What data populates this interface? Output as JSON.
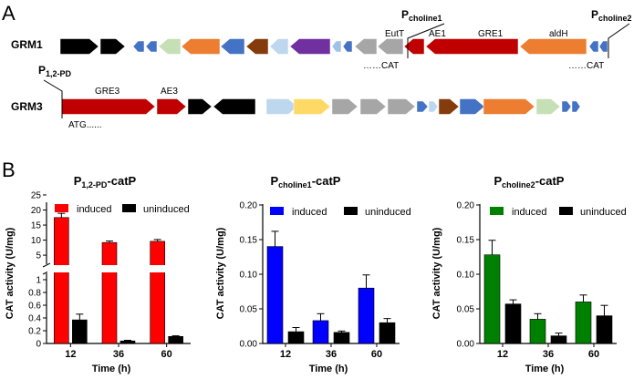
{
  "panel_a": {
    "label": "A",
    "grm1": {
      "name": "GRM1",
      "promoter1": {
        "main": "P",
        "sub": "choline1"
      },
      "promoter2": {
        "main": "P",
        "sub": "choline2"
      },
      "gene_labels": [
        "EutT",
        "AE1",
        "GRE1",
        "aldH"
      ],
      "seq1": "……CAT",
      "seq2": "……CAT",
      "arrows": [
        {
          "color": "#000000",
          "dir": "right",
          "size": "large"
        },
        {
          "color": "#000000",
          "dir": "right",
          "size": "large"
        },
        {
          "color": "#4472c4",
          "dir": "left",
          "size": "small"
        },
        {
          "color": "#4472c4",
          "dir": "left",
          "size": "small"
        },
        {
          "color": "#c5e0b4",
          "dir": "left",
          "size": "large"
        },
        {
          "color": "#ed7d31",
          "dir": "left",
          "size": "large"
        },
        {
          "color": "#4472c4",
          "dir": "left",
          "size": "large"
        },
        {
          "color": "#843c0c",
          "dir": "left",
          "size": "large"
        },
        {
          "color": "#bdd7ee",
          "dir": "left",
          "size": "large"
        },
        {
          "color": "#7030a0",
          "dir": "left",
          "size": "large"
        },
        {
          "color": "#9dc3e6",
          "dir": "left",
          "size": "small"
        },
        {
          "color": "#4472c4",
          "dir": "left",
          "size": "small"
        },
        {
          "color": "#a6a6a6",
          "dir": "left",
          "size": "large"
        },
        {
          "color": "#a6a6a6",
          "dir": "left",
          "size": "large"
        },
        {
          "color": "#c00000",
          "dir": "left",
          "size": "large"
        },
        {
          "color": "#c00000",
          "dir": "left",
          "size": "large"
        },
        {
          "color": "#ed7d31",
          "dir": "left",
          "size": "large"
        },
        {
          "color": "#4472c4",
          "dir": "left",
          "size": "small"
        },
        {
          "color": "#4472c4",
          "dir": "left",
          "size": "small"
        }
      ]
    },
    "grm3": {
      "name": "GRM3",
      "promoter": {
        "main": "P",
        "sub": "1,2-PD"
      },
      "gene_labels": [
        "GRE3",
        "AE3"
      ],
      "seq": "ATG......",
      "arrows": [
        {
          "color": "#c00000",
          "dir": "right",
          "size": "large"
        },
        {
          "color": "#c00000",
          "dir": "right",
          "size": "large"
        },
        {
          "color": "#000000",
          "dir": "right",
          "size": "large"
        },
        {
          "color": "#000000",
          "dir": "left",
          "size": "large"
        },
        {
          "color": "#bdd7ee",
          "dir": "right",
          "size": "large"
        },
        {
          "color": "#ffd966",
          "dir": "right",
          "size": "large"
        },
        {
          "color": "#a6a6a6",
          "dir": "right",
          "size": "large"
        },
        {
          "color": "#a6a6a6",
          "dir": "right",
          "size": "large"
        },
        {
          "color": "#a6a6a6",
          "dir": "right",
          "size": "large"
        },
        {
          "color": "#4472c4",
          "dir": "right",
          "size": "small"
        },
        {
          "color": "#bdd7ee",
          "dir": "right",
          "size": "small"
        },
        {
          "color": "#843c0c",
          "dir": "right",
          "size": "large"
        },
        {
          "color": "#4472c4",
          "dir": "right",
          "size": "large"
        },
        {
          "color": "#ed7d31",
          "dir": "right",
          "size": "large"
        },
        {
          "color": "#c5e0b4",
          "dir": "right",
          "size": "large"
        },
        {
          "color": "#4472c4",
          "dir": "right",
          "size": "small"
        },
        {
          "color": "#4472c4",
          "dir": "right",
          "size": "small"
        }
      ]
    }
  },
  "panel_b": {
    "label": "B"
  },
  "chart_data": [
    {
      "type": "bar",
      "title": {
        "main": "P",
        "sub": "1,2-PD",
        "suffix": "-catP"
      },
      "xlabel": "Time (h)",
      "ylabel": "CAT activity (U/mg)",
      "categories": [
        "12",
        "36",
        "60"
      ],
      "axis_break": true,
      "upper_ticks": [
        "5",
        "10",
        "15",
        "20",
        "25"
      ],
      "lower_ticks": [
        "0",
        "0.2",
        "0.4",
        "0.6",
        "0.8",
        "1"
      ],
      "upper_range": [
        2,
        25
      ],
      "lower_range": [
        0,
        1.1
      ],
      "legend": [
        "induced",
        "uninduced"
      ],
      "colors": [
        "#ff0000",
        "#000000"
      ],
      "series": [
        {
          "name": "induced",
          "values": [
            17.5,
            9.2,
            9.6
          ],
          "errors": [
            1.4,
            0.5,
            0.6
          ]
        },
        {
          "name": "uninduced",
          "values": [
            0.37,
            0.04,
            0.11
          ],
          "errors": [
            0.09,
            0.01,
            0.01
          ]
        }
      ]
    },
    {
      "type": "bar",
      "title": {
        "main": "P",
        "sub": "choline1",
        "suffix": "-catP"
      },
      "xlabel": "Time (h)",
      "ylabel": "CAT activity (U/mg)",
      "categories": [
        "12",
        "36",
        "60"
      ],
      "ylim": [
        0,
        0.2
      ],
      "ticks": [
        "0.00",
        "0.05",
        "0.10",
        "0.15",
        "0.20"
      ],
      "legend": [
        "induced",
        "uninduced"
      ],
      "colors": [
        "#0000ff",
        "#000000"
      ],
      "series": [
        {
          "name": "induced",
          "values": [
            0.14,
            0.033,
            0.08
          ],
          "errors": [
            0.022,
            0.01,
            0.019
          ]
        },
        {
          "name": "uninduced",
          "values": [
            0.017,
            0.016,
            0.03
          ],
          "errors": [
            0.006,
            0.002,
            0.006
          ]
        }
      ]
    },
    {
      "type": "bar",
      "title": {
        "main": "P",
        "sub": "choline2",
        "suffix": "-catP"
      },
      "xlabel": "Time (h)",
      "ylabel": "CAT activity (U/mg)",
      "categories": [
        "12",
        "36",
        "60"
      ],
      "ylim": [
        0,
        0.2
      ],
      "ticks": [
        "0.00",
        "0.05",
        "0.10",
        "0.15",
        "0.20"
      ],
      "legend": [
        "induced",
        "uninduced"
      ],
      "colors": [
        "#008000",
        "#000000"
      ],
      "series": [
        {
          "name": "induced",
          "values": [
            0.128,
            0.035,
            0.06
          ],
          "errors": [
            0.021,
            0.008,
            0.01
          ]
        },
        {
          "name": "uninduced",
          "values": [
            0.057,
            0.011,
            0.04
          ],
          "errors": [
            0.006,
            0.004,
            0.015
          ]
        }
      ]
    }
  ]
}
